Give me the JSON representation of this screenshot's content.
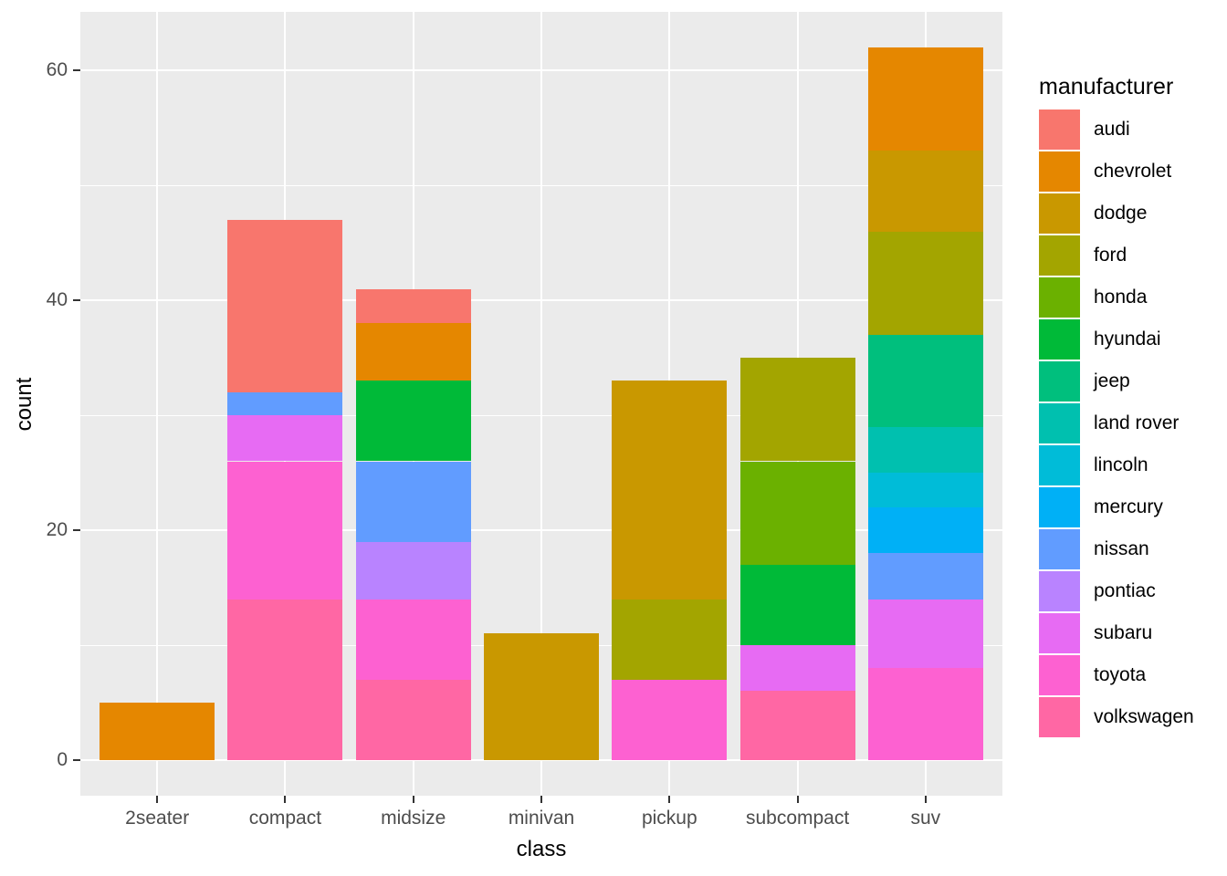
{
  "chart_data": {
    "type": "bar",
    "stacked": true,
    "title": "",
    "xlabel": "class",
    "ylabel": "count",
    "legend_title": "manufacturer",
    "legend_position": "right",
    "grid": true,
    "categories": [
      "2seater",
      "compact",
      "midsize",
      "minivan",
      "pickup",
      "subcompact",
      "suv"
    ],
    "totals": [
      5,
      47,
      41,
      11,
      33,
      35,
      62
    ],
    "y_ticks": [
      0,
      20,
      40,
      60
    ],
    "y_minor_ticks": [
      10,
      30,
      50
    ],
    "ylim": [
      -3.1,
      65.1
    ],
    "stack_order": "first-series-on-top",
    "series": [
      {
        "name": "audi",
        "color": "#F8766D",
        "values": [
          0,
          15,
          3,
          0,
          0,
          0,
          0
        ]
      },
      {
        "name": "chevrolet",
        "color": "#E58700",
        "values": [
          5,
          0,
          5,
          0,
          0,
          0,
          9
        ]
      },
      {
        "name": "dodge",
        "color": "#C99800",
        "values": [
          0,
          0,
          0,
          11,
          19,
          0,
          7
        ]
      },
      {
        "name": "ford",
        "color": "#A3A500",
        "values": [
          0,
          0,
          0,
          0,
          7,
          9,
          9
        ]
      },
      {
        "name": "honda",
        "color": "#6BB100",
        "values": [
          0,
          0,
          0,
          0,
          0,
          9,
          0
        ]
      },
      {
        "name": "hyundai",
        "color": "#00BA38",
        "values": [
          0,
          0,
          7,
          0,
          0,
          7,
          0
        ]
      },
      {
        "name": "jeep",
        "color": "#00BF7D",
        "values": [
          0,
          0,
          0,
          0,
          0,
          0,
          8
        ]
      },
      {
        "name": "land rover",
        "color": "#00C0AF",
        "values": [
          0,
          0,
          0,
          0,
          0,
          0,
          4
        ]
      },
      {
        "name": "lincoln",
        "color": "#00BCD8",
        "values": [
          0,
          0,
          0,
          0,
          0,
          0,
          3
        ]
      },
      {
        "name": "mercury",
        "color": "#00B0F6",
        "values": [
          0,
          0,
          0,
          0,
          0,
          0,
          4
        ]
      },
      {
        "name": "nissan",
        "color": "#619CFF",
        "values": [
          0,
          2,
          7,
          0,
          0,
          0,
          4
        ]
      },
      {
        "name": "pontiac",
        "color": "#B983FF",
        "values": [
          0,
          0,
          5,
          0,
          0,
          0,
          0
        ]
      },
      {
        "name": "subaru",
        "color": "#E76BF3",
        "values": [
          0,
          4,
          0,
          0,
          0,
          4,
          6
        ]
      },
      {
        "name": "toyota",
        "color": "#FD61D1",
        "values": [
          0,
          12,
          7,
          0,
          7,
          0,
          8
        ]
      },
      {
        "name": "volkswagen",
        "color": "#FF67A4",
        "values": [
          0,
          14,
          7,
          0,
          0,
          6,
          0
        ]
      }
    ]
  },
  "style": {
    "panel_bg": "#EBEBEB",
    "grid_color": "#FFFFFF",
    "tick_mark_color": "#333333",
    "tick_label_color": "#4D4D4D",
    "title_color": "#000000",
    "page_bg": "#FFFFFF"
  }
}
